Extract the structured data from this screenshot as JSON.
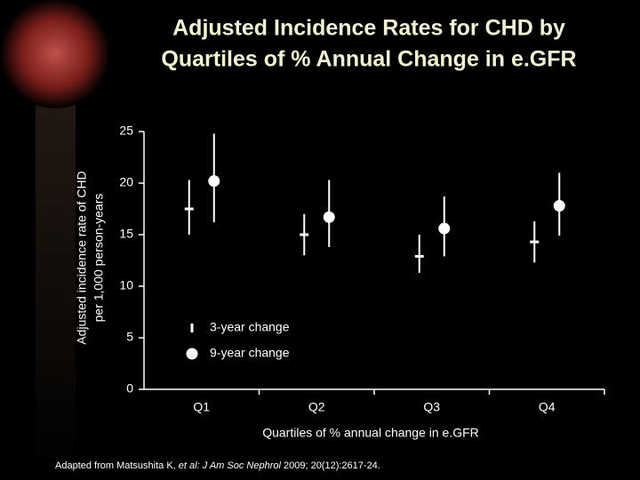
{
  "chart_data": {
    "type": "errorbar",
    "title": [
      "Adjusted Incidence Rates for CHD by",
      "Quartiles of % Annual Change in e.GFR"
    ],
    "y_label": [
      "Adjusted incidence rate of CHD",
      "per 1,000 person-years"
    ],
    "x_label": "Quartiles of % annual change in e.GFR",
    "categories": [
      "Q1",
      "Q2",
      "Q3",
      "Q4"
    ],
    "series": [
      {
        "name": "3-year change",
        "marker": "dash",
        "color": "#ffffff",
        "values": [
          17.5,
          15.0,
          12.9,
          14.3
        ],
        "lower": [
          15.0,
          13.0,
          11.3,
          12.3
        ],
        "upper": [
          20.3,
          17.0,
          15.0,
          16.3
        ]
      },
      {
        "name": "9-year change",
        "marker": "circle",
        "color": "#ffffff",
        "values": [
          20.2,
          16.7,
          15.6,
          17.8
        ],
        "lower": [
          16.2,
          13.8,
          12.9,
          14.9
        ],
        "upper": [
          24.8,
          20.3,
          18.7,
          21.0
        ]
      }
    ],
    "ylim": [
      0,
      25
    ],
    "yticks": [
      0,
      5,
      10,
      15,
      20,
      25
    ],
    "source": {
      "prefix": "Adapted from Matsushita K, ",
      "italic": "et al: J Am Soc Nephrol",
      "suffix": " 2009; 20(12):2617-24."
    }
  }
}
